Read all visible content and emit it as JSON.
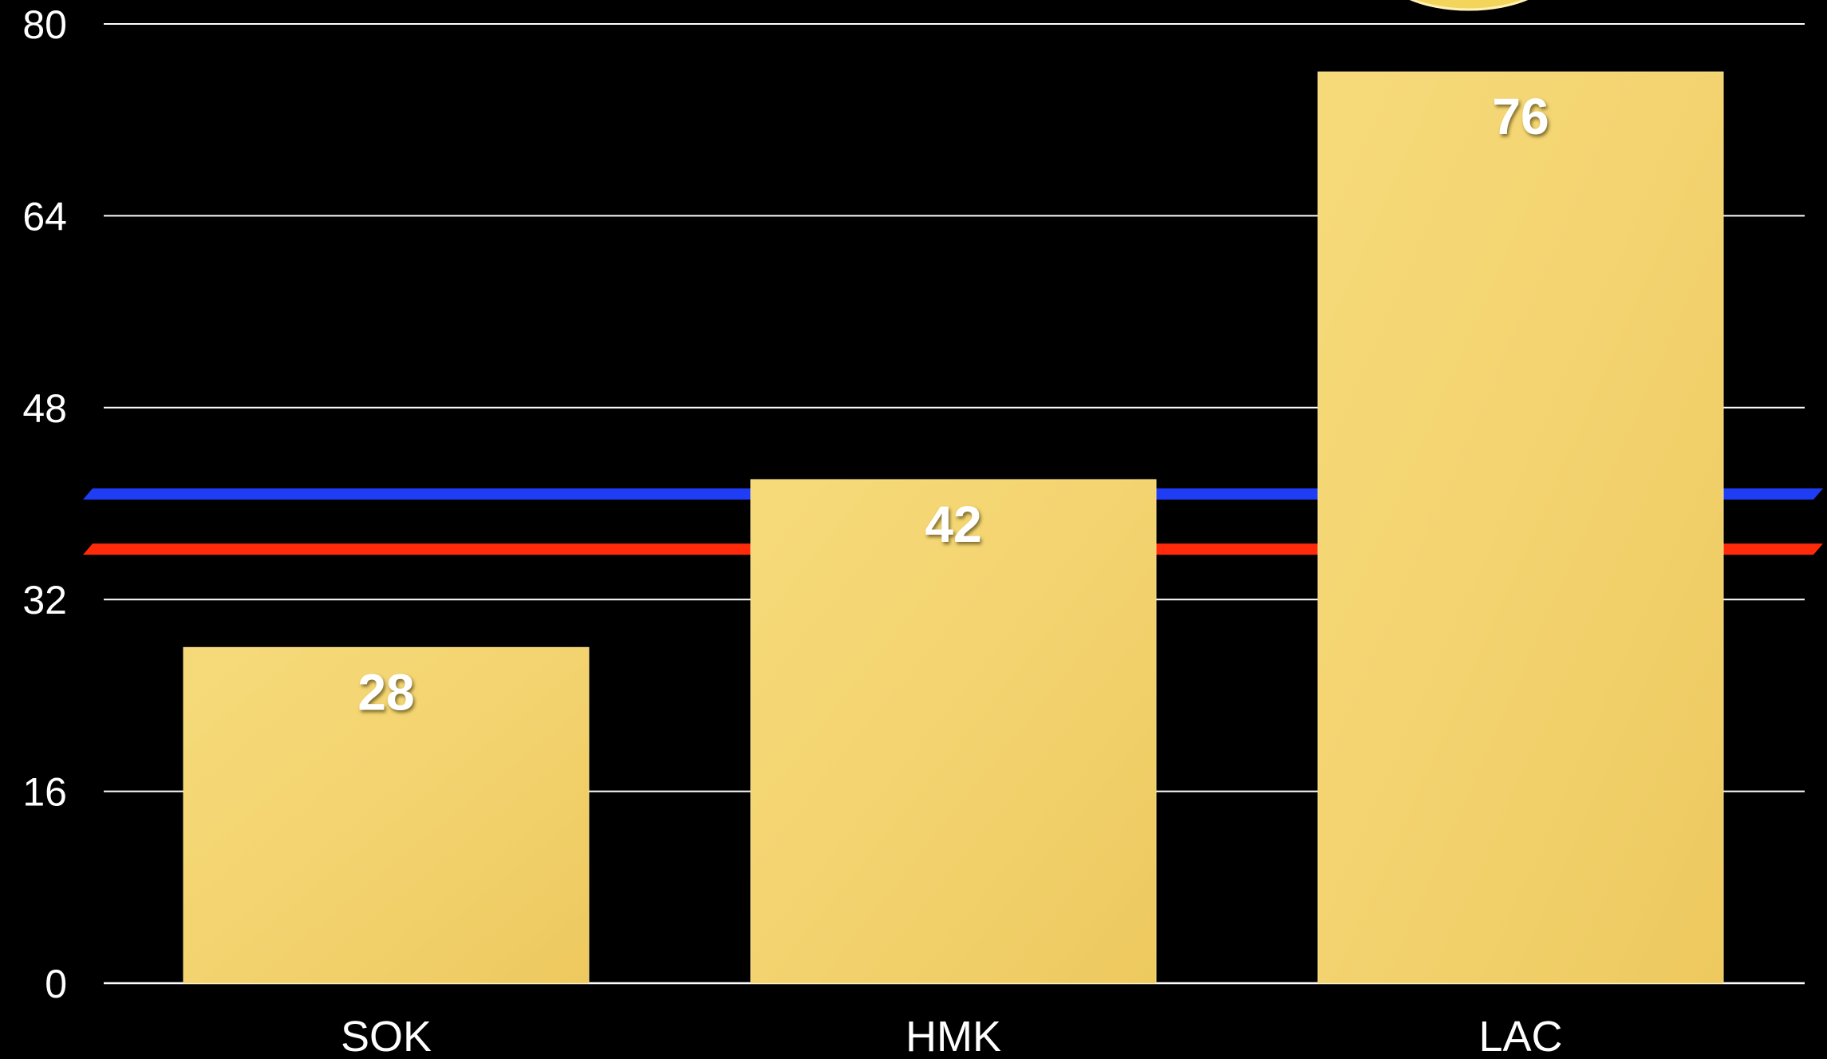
{
  "chart_data": {
    "type": "bar",
    "title": "",
    "xlabel": "",
    "ylabel": "",
    "categories": [
      "SOK",
      "HMK",
      "LAC"
    ],
    "values": [
      28,
      42,
      76
    ],
    "data_labels": [
      "28",
      "42",
      "76"
    ],
    "ylim": [
      0,
      80
    ],
    "yticks": [
      0,
      16,
      32,
      48,
      64,
      80
    ],
    "ytick_labels": [
      "0",
      "16",
      "32",
      "48",
      "64",
      "80"
    ],
    "grid": true,
    "reference_lines": [
      {
        "value": 40.8,
        "color": "#1f3df5"
      },
      {
        "value": 36.2,
        "color": "#ff2a0a"
      }
    ],
    "colors": {
      "background": "#000000",
      "bar": "#f3d36f",
      "bar_edge": "#f7df8c",
      "grid": "#ffffff",
      "text": "#ffffff",
      "highlight_marker": "#f4d55c"
    }
  }
}
